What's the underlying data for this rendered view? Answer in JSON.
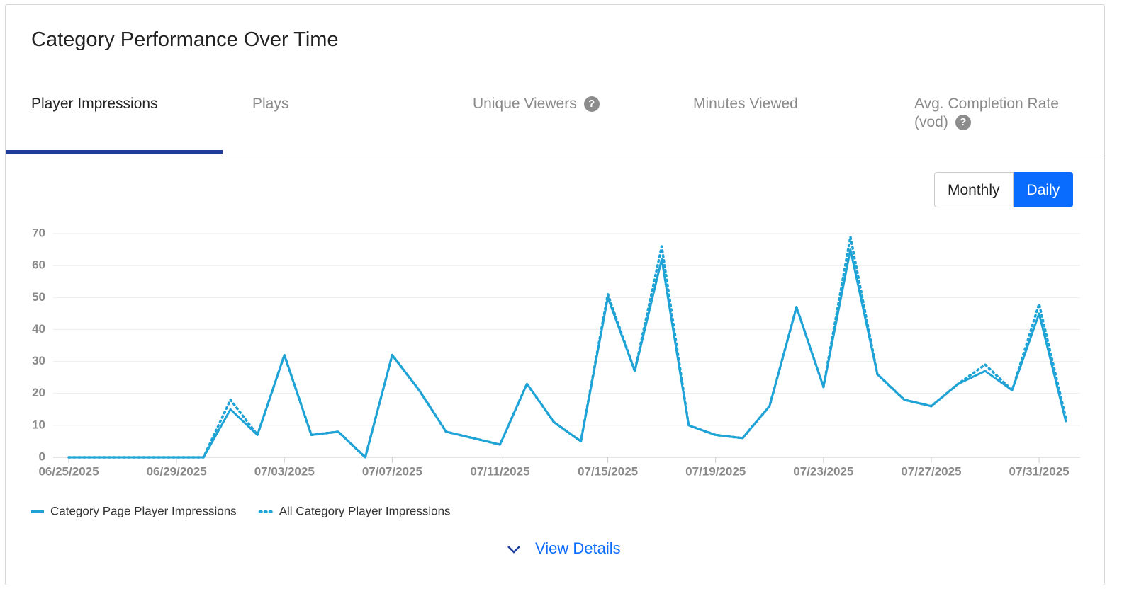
{
  "header": {
    "title": "Category Performance Over Time"
  },
  "tabs": [
    {
      "label": "Player Impressions",
      "active": true
    },
    {
      "label": "Plays",
      "active": false
    },
    {
      "label": "Unique Viewers",
      "active": false,
      "help": true
    },
    {
      "label": "Minutes Viewed",
      "active": false
    },
    {
      "label": "Avg. Completion Rate (vod)",
      "active": false,
      "help": true
    }
  ],
  "toggle": [
    {
      "label": "Monthly",
      "active": false
    },
    {
      "label": "Daily",
      "active": true
    }
  ],
  "chart_data": {
    "type": "line",
    "categories": [
      "06/25/2025",
      null,
      null,
      null,
      "06/29/2025",
      null,
      null,
      null,
      "07/03/2025",
      null,
      null,
      null,
      "07/07/2025",
      null,
      null,
      null,
      "07/11/2025",
      null,
      null,
      null,
      "07/15/2025",
      null,
      null,
      null,
      "07/19/2025",
      null,
      null,
      null,
      "07/23/2025",
      null,
      null,
      null,
      "07/27/2025",
      null,
      null,
      null,
      "07/31/2025",
      null
    ],
    "series": [
      {
        "name": "Category Page Player Impressions",
        "color": "#1fa3d6",
        "line_style": "solid",
        "values": [
          0,
          0,
          0,
          0,
          0,
          0,
          15,
          7,
          32,
          7,
          8,
          0,
          32,
          21,
          8,
          6,
          4,
          23,
          11,
          5,
          50,
          27,
          62,
          10,
          7,
          6,
          16,
          47,
          22,
          65,
          26,
          18,
          16,
          23,
          27,
          21,
          45,
          11
        ]
      },
      {
        "name": "All Category Player Impressions",
        "color": "#1fa3d6",
        "line_style": "dotted",
        "values": [
          0,
          0,
          0,
          0,
          0,
          0,
          18,
          7,
          32,
          7,
          8,
          0,
          32,
          21,
          8,
          6,
          4,
          23,
          11,
          5,
          51,
          27,
          66,
          10,
          7,
          6,
          16,
          47,
          22,
          69,
          26,
          18,
          16,
          23,
          29,
          21,
          48,
          12
        ]
      }
    ],
    "ylim": [
      0,
      70
    ],
    "yticks": [
      0,
      10,
      20,
      30,
      40,
      50,
      60,
      70
    ],
    "grid": true
  },
  "view_details": "View Details"
}
